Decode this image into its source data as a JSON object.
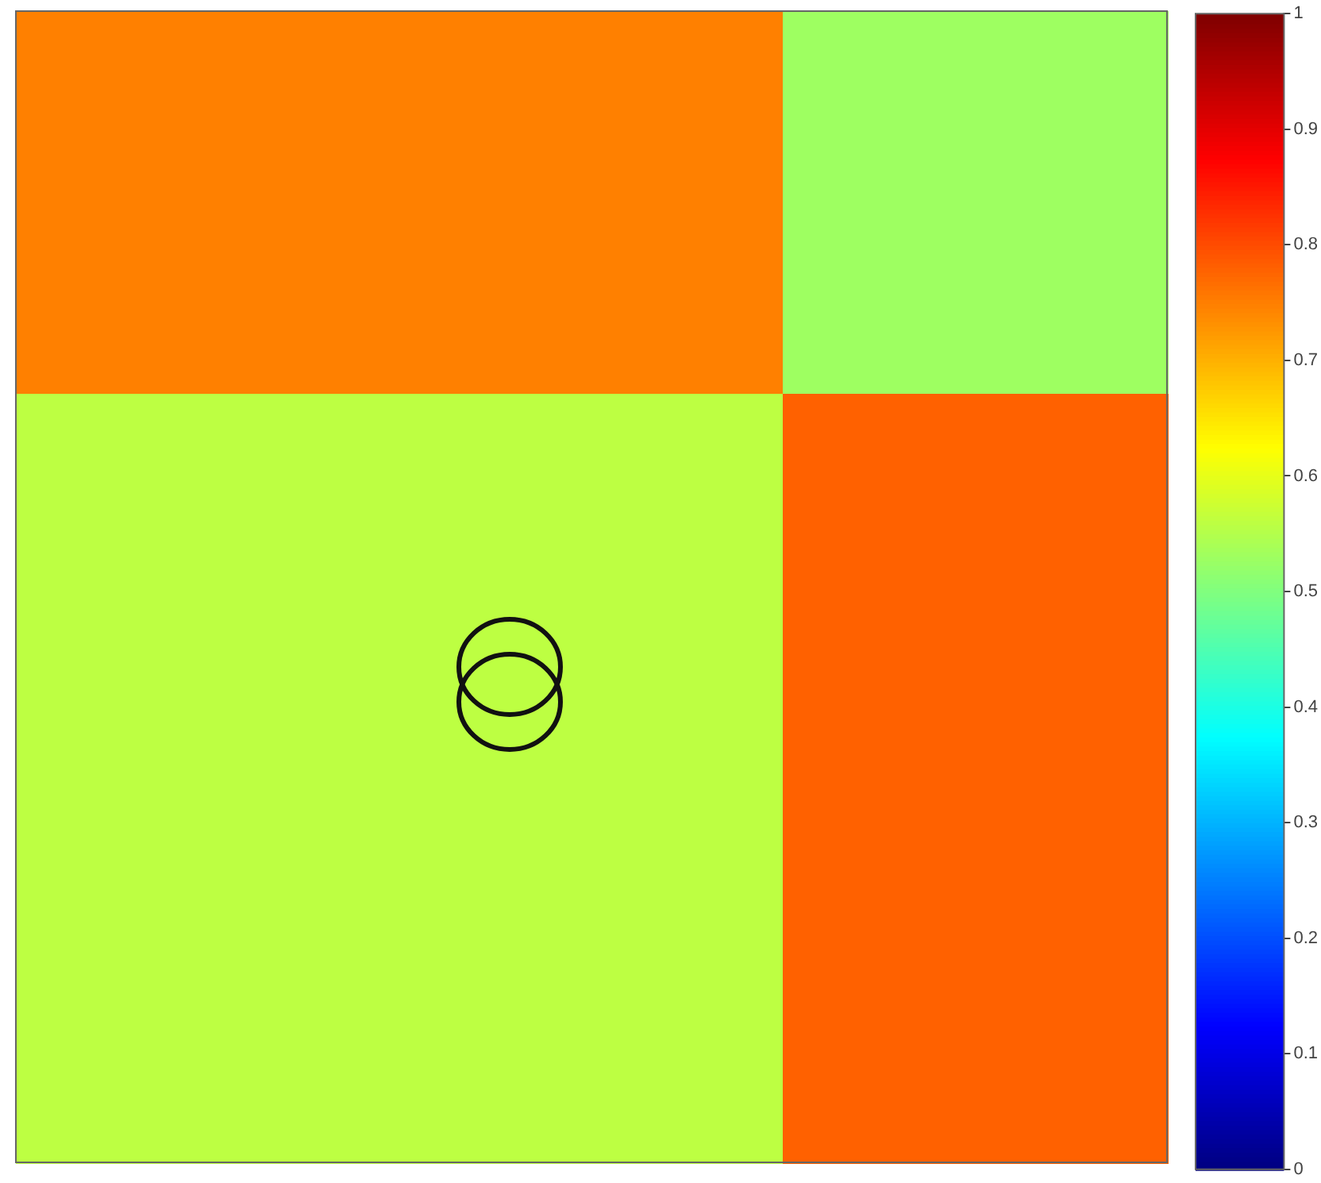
{
  "chart_data": {
    "type": "heatmap",
    "categories": [
      null,
      null,
      null
    ],
    "y_categories": [
      null,
      null,
      null
    ],
    "cells": [
      [
        0.75,
        0.75,
        0.53
      ],
      [
        0.56,
        0.56,
        0.78
      ],
      [
        0.56,
        0.56,
        0.78
      ]
    ],
    "clim": [
      0,
      1
    ],
    "cticks": [
      0,
      0.1,
      0.2,
      0.3,
      0.4,
      0.5,
      0.6,
      0.7,
      0.8,
      0.9,
      1
    ],
    "tick_labels": false
  }
}
